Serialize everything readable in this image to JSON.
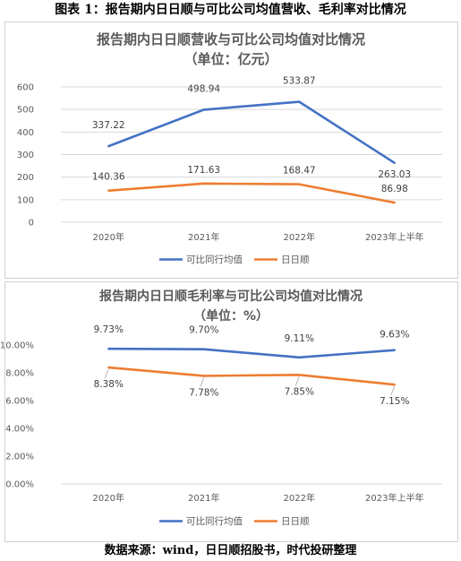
{
  "figure_title": "图表 1：报告期内日日顺与可比公司均值营收、毛利率对比情况",
  "source_note": "数据来源：wind，日日顺招股书，时代投研整理",
  "colors": {
    "peer": "#4472C4",
    "rrs": "#ED7D31",
    "grid": "#D9D9D9",
    "text": "#595959"
  },
  "chart_data": [
    {
      "type": "line",
      "title": "报告期内日日顺营收与可比公司均值对比情况",
      "subtitle": "（单位：亿元）",
      "categories": [
        "2020年",
        "2021年",
        "2022年",
        "2023年上半年"
      ],
      "y_ticks": [
        "0",
        "100",
        "200",
        "300",
        "400",
        "500",
        "600"
      ],
      "ylim": [
        0,
        600
      ],
      "grid": true,
      "legend_position": "bottom",
      "series": [
        {
          "name": "可比同行均值",
          "values": [
            337.22,
            498.94,
            533.87,
            263.03
          ],
          "labels": [
            "337.22",
            "498.94",
            "533.87",
            "263.03"
          ],
          "color": "#4472C4"
        },
        {
          "name": "日日顺",
          "values": [
            140.36,
            171.63,
            168.47,
            86.98
          ],
          "labels": [
            "140.36",
            "171.63",
            "168.47",
            "86.98"
          ],
          "color": "#ED7D31"
        }
      ]
    },
    {
      "type": "line",
      "title": "报告期内日日顺毛利率与可比公司均值对比情况",
      "subtitle": "（单位：%）",
      "categories": [
        "2020年",
        "2021年",
        "2022年",
        "2023年上半年"
      ],
      "y_ticks": [
        "0.00%",
        "2.00%",
        "4.00%",
        "6.00%",
        "8.00%",
        "10.00%"
      ],
      "ylim": [
        0,
        10
      ],
      "grid": false,
      "legend_position": "bottom",
      "series": [
        {
          "name": "可比同行均值",
          "values": [
            9.73,
            9.7,
            9.11,
            9.63
          ],
          "labels": [
            "9.73%",
            "9.70%",
            "9.11%",
            "9.63%"
          ],
          "color": "#4472C4"
        },
        {
          "name": "日日顺",
          "values": [
            8.38,
            7.78,
            7.85,
            7.15
          ],
          "labels": [
            "8.38%",
            "7.78%",
            "7.85%",
            "7.15%"
          ],
          "color": "#ED7D31"
        }
      ]
    }
  ]
}
